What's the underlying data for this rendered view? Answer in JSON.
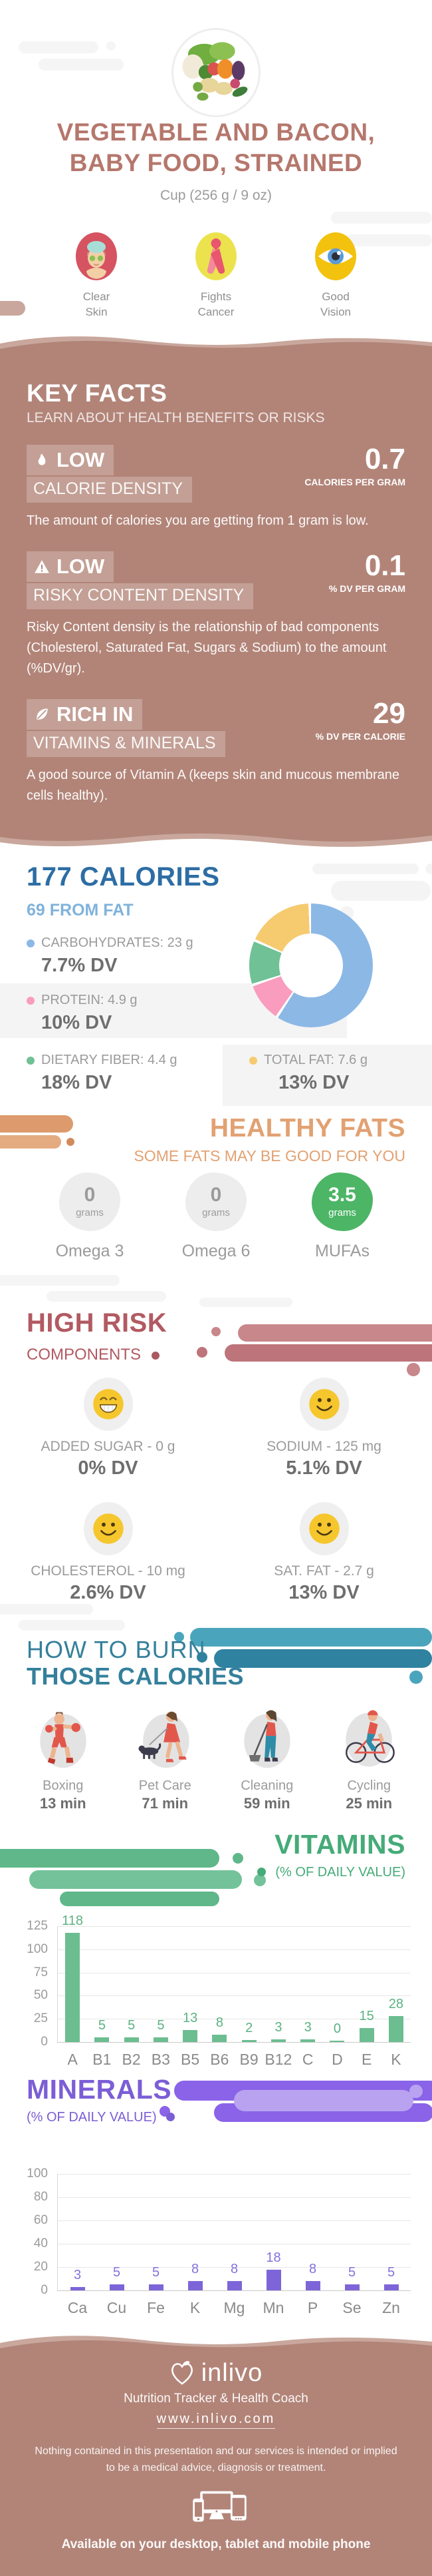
{
  "colors": {
    "rose_title": "#b5776c",
    "section_bg": "#b28478",
    "wave_light": "#c9a79c",
    "blue_dark": "#2d6da4",
    "blue_light": "#7fb3dc",
    "orange": "#e2a172",
    "red": "#b25a62",
    "teal": "#35809b",
    "green": "#45ab78",
    "purple": "#7b5ed6"
  },
  "header": {
    "title_line1": "VEGETABLE AND BACON,",
    "title_line2": "BABY FOOD, STRAINED",
    "serving": "Cup (256 g / 9 oz)",
    "benefits": [
      {
        "line1": "Clear",
        "line2": "Skin",
        "icon": "spa-face-icon"
      },
      {
        "line1": "Fights",
        "line2": "Cancer",
        "icon": "awareness-ribbon-icon"
      },
      {
        "line1": "Good",
        "line2": "Vision",
        "icon": "eye-icon"
      }
    ]
  },
  "key_facts": {
    "heading": "KEY FACTS",
    "subheading": "LEARN ABOUT HEALTH BENEFITS OR RISKS",
    "facts": [
      {
        "icon": "flame-icon",
        "badge": "LOW",
        "label": "CALORIE DENSITY",
        "value": "0.7",
        "unit": "CALORIES PER GRAM",
        "description": "The amount of calories you are getting from 1 gram is low."
      },
      {
        "icon": "warning-icon",
        "badge": "LOW",
        "label": "RISKY CONTENT DENSITY",
        "value": "0.1",
        "unit": "% DV PER GRAM",
        "description": "Risky Content density is the relationship of bad components (Cholesterol, Saturated Fat, Sugars & Sodium) to the amount (%DV/gr)."
      },
      {
        "icon": "leaf-icon",
        "badge": "RICH IN",
        "label": "VITAMINS & MINERALS",
        "value": "29",
        "unit": "% DV PER CALORIE",
        "description": "A good source of Vitamin A (keeps skin and mucous membrane cells healthy)."
      }
    ]
  },
  "calories": {
    "heading": "177 CALORIES",
    "subheading": "69 FROM FAT",
    "legend": [
      {
        "name": "CARBOHYDRATES: 23 g",
        "dv": "7.7% DV",
        "color": "#8cb8e6"
      },
      {
        "name": "PROTEIN: 4.9 g",
        "dv": "10% DV",
        "color": "#f99cbd"
      },
      {
        "name": "DIETARY FIBER: 4.4 g",
        "dv": "18% DV",
        "color": "#70c195"
      },
      {
        "name": "TOTAL FAT: 7.6 g",
        "dv": "13% DV",
        "color": "#f6ca6e"
      }
    ]
  },
  "healthy_fats": {
    "heading": "HEALTHY FATS",
    "subheading": "SOME FATS MAY BE GOOD FOR YOU",
    "items": [
      {
        "value": "0",
        "unit": "grams",
        "label": "Omega 3",
        "highlight": false
      },
      {
        "value": "0",
        "unit": "grams",
        "label": "Omega 6",
        "highlight": false
      },
      {
        "value": "3.5",
        "unit": "grams",
        "label": "MUFAs",
        "highlight": true
      }
    ]
  },
  "high_risk": {
    "heading": "HIGH RISK",
    "subheading": "COMPONENTS",
    "items": [
      {
        "label": "ADDED SUGAR - 0 g",
        "dv": "0% DV",
        "mood": "grin"
      },
      {
        "label": "SODIUM - 125 mg",
        "dv": "5.1% DV",
        "mood": "smile"
      },
      {
        "label": "CHOLESTEROL - 10 mg",
        "dv": "2.6% DV",
        "mood": "smile"
      },
      {
        "label": "SAT. FAT - 2.7 g",
        "dv": "13% DV",
        "mood": "smile"
      }
    ]
  },
  "burn": {
    "heading_line1": "HOW TO BURN",
    "heading_line2": "THOSE CALORIES",
    "activities": [
      {
        "label": "Boxing",
        "time": "13 min",
        "icon": "boxing-icon"
      },
      {
        "label": "Pet Care",
        "time": "71 min",
        "icon": "dog-walking-icon"
      },
      {
        "label": "Cleaning",
        "time": "59 min",
        "icon": "sweeping-icon"
      },
      {
        "label": "Cycling",
        "time": "25 min",
        "icon": "cycling-icon"
      }
    ]
  },
  "vitamins": {
    "heading": "VITAMINS",
    "subheading": "(% OF DAILY VALUE)"
  },
  "minerals": {
    "heading": "MINERALS",
    "subheading": "(% OF DAILY VALUE)"
  },
  "footer": {
    "brand": "inlivo",
    "tagline": "Nutrition Tracker & Health Coach",
    "url": "www.inlivo.com",
    "disclaimer_line1": "Nothing contained in this presentation and our services is intended or implied",
    "disclaimer_line2": "to be a medical advice, diagnosis or treatment.",
    "availability": "Available on your desktop, tablet and mobile phone"
  },
  "chart_data": [
    {
      "type": "pie",
      "subtype": "donut",
      "title": "177 CALORIES",
      "subtitle": "69 FROM FAT",
      "segments": [
        {
          "label": "Carbohydrates",
          "amount": "23 g",
          "percent_dv": "7.7% DV",
          "fraction": 59.7,
          "color": "#8cb8e6"
        },
        {
          "label": "Protein",
          "amount": "4.9 g",
          "percent_dv": "10% DV",
          "fraction": 10.5,
          "color": "#f99cbd"
        },
        {
          "label": "Dietary Fiber",
          "amount": "4.4 g",
          "percent_dv": "18% DV",
          "fraction": 11.8,
          "color": "#70c195"
        },
        {
          "label": "Total Fat",
          "amount": "7.6 g",
          "percent_dv": "13% DV",
          "fraction": 18.0,
          "color": "#f6ca6e"
        }
      ]
    },
    {
      "type": "bar",
      "title": "VITAMINS",
      "subtitle": "(% OF DAILY VALUE)",
      "categories": [
        "A",
        "B1",
        "B2",
        "B3",
        "B5",
        "B6",
        "B9",
        "B12",
        "C",
        "D",
        "E",
        "K"
      ],
      "values": [
        118,
        5,
        5,
        5,
        13,
        8,
        2,
        3,
        3,
        0,
        15,
        28
      ],
      "ylim": [
        0,
        125
      ],
      "yticks": [
        0,
        25,
        50,
        75,
        100,
        125
      ],
      "bar_color": "#6cbd90",
      "value_label_color": "#5cb282",
      "grid": true,
      "ylabel": "",
      "xlabel": ""
    },
    {
      "type": "bar",
      "title": "MINERALS",
      "subtitle": "(% OF DAILY VALUE)",
      "categories": [
        "Ca",
        "Cu",
        "Fe",
        "K",
        "Mg",
        "Mn",
        "P",
        "Se",
        "Zn"
      ],
      "values": [
        3,
        5,
        5,
        8,
        8,
        18,
        8,
        5,
        5
      ],
      "ylim": [
        0,
        100
      ],
      "yticks": [
        0,
        20,
        40,
        60,
        80,
        100
      ],
      "bar_color": "#7d65d9",
      "value_label_color": "#8570dc",
      "grid": true,
      "ylabel": "",
      "xlabel": ""
    }
  ]
}
